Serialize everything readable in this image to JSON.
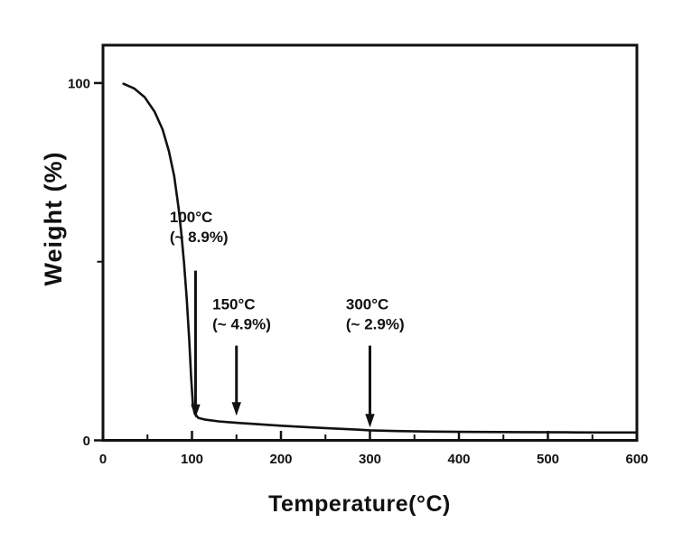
{
  "figure": {
    "background_color": "#ffffff",
    "ink_color": "#111111",
    "description": "TGA weight-loss curve"
  },
  "chart_data": {
    "type": "line",
    "title": "",
    "xlabel": "Temperature(°C)",
    "ylabel": "Weight (%)",
    "xlim": [
      0,
      600
    ],
    "ylim": [
      0,
      110.6
    ],
    "grid": false,
    "legend": "none",
    "x_ticks_major": [
      0,
      100,
      200,
      300,
      400,
      500,
      600
    ],
    "x_tick_labels": [
      "0",
      "100",
      "200",
      "300",
      "400",
      "500",
      "600"
    ],
    "x_ticks_minor": [
      50,
      150,
      250,
      350,
      450,
      550
    ],
    "y_ticks_major": [
      0,
      100
    ],
    "y_tick_labels": [
      "0",
      "100"
    ],
    "y_ticks_minor": [
      50
    ],
    "series": [
      {
        "name": "weight-percent-vs-temperature",
        "x": [
          23,
          35,
          47,
          58,
          67,
          74,
          80,
          85,
          88,
          91,
          94,
          97,
          99,
          101,
          103,
          107,
          115,
          130,
          150,
          175,
          200,
          230,
          260,
          285,
          300,
          330,
          370,
          420,
          470,
          520,
          560,
          600
        ],
        "y": [
          99.8,
          98.5,
          96.0,
          92.0,
          87.0,
          81.0,
          74.0,
          65.0,
          58.0,
          50.0,
          40.0,
          28.0,
          18.0,
          10.0,
          7.5,
          6.3,
          5.8,
          5.3,
          4.9,
          4.5,
          4.1,
          3.7,
          3.3,
          3.0,
          2.8,
          2.6,
          2.45,
          2.35,
          2.3,
          2.25,
          2.2,
          2.2
        ]
      }
    ],
    "annotations": [
      {
        "line1": "100°C",
        "line2": "(~ 8.9%)",
        "temperature_c": 100,
        "weight_loss_pct": 8.9,
        "text_pos": {
          "t": 75,
          "w": 64.8
        },
        "arrow": {
          "t": 104,
          "w_from": 47.5,
          "w_to": 6.3
        }
      },
      {
        "line1": "150°C",
        "line2": "(~ 4.9%)",
        "temperature_c": 150,
        "weight_loss_pct": 4.9,
        "text_pos": {
          "t": 123,
          "w": 40.5
        },
        "arrow": {
          "t": 150,
          "w_from": 26.5,
          "w_to": 6.9
        }
      },
      {
        "line1": "300°C",
        "line2": "(~ 2.9%)",
        "temperature_c": 300,
        "weight_loss_pct": 2.9,
        "text_pos": {
          "t": 273,
          "w": 40.5
        },
        "arrow": {
          "t": 300,
          "w_from": 26.5,
          "w_to": 3.6
        }
      }
    ]
  }
}
